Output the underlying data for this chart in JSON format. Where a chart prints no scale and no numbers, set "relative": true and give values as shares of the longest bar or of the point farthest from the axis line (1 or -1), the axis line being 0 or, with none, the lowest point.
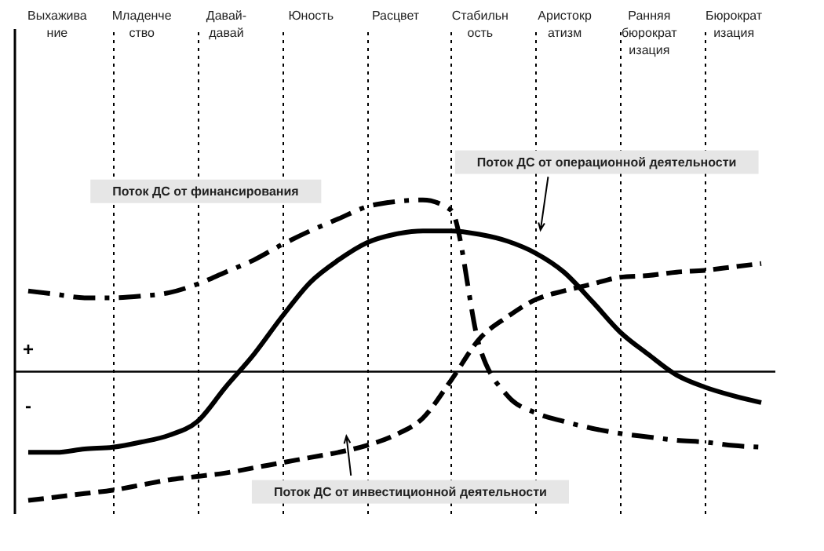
{
  "chart_data": {
    "type": "line",
    "relative": true,
    "categories": [
      null,
      "Выхаживание",
      null,
      null,
      "Младенчество",
      null,
      null,
      "Давай-давай",
      null,
      null,
      "Юность",
      null,
      null,
      "Расцвет",
      null,
      null,
      "Стабильность",
      null,
      null,
      "Аристократизм",
      null,
      null,
      "Ранняя бюрократизация",
      null,
      null,
      "Бюрократизация",
      null
    ],
    "grid": "x",
    "legend": false,
    "series": [
      {
        "name": "Поток ДС от операционной деятельности",
        "color": "#000000",
        "line_style": "solid",
        "values": [
          -0.47,
          -0.47,
          -0.45,
          -0.44,
          -0.41,
          -0.37,
          -0.29,
          -0.09,
          0.1,
          0.32,
          0.52,
          0.65,
          0.75,
          0.8,
          0.82,
          0.82,
          0.8,
          0.76,
          0.69,
          0.58,
          0.41,
          0.23,
          0.1,
          -0.02,
          -0.09,
          -0.14,
          -0.18
        ]
      },
      {
        "name": "Поток ДС от финансирования",
        "color": "#000000",
        "line_style": "dashdot",
        "values": [
          0.47,
          0.45,
          0.43,
          0.43,
          0.44,
          0.46,
          0.51,
          0.58,
          0.65,
          0.74,
          0.82,
          0.89,
          0.96,
          0.99,
          1,
          0.94,
          0.15,
          -0.14,
          -0.24,
          -0.29,
          -0.33,
          -0.36,
          -0.38,
          -0.4,
          -0.41,
          -0.43,
          -0.44
        ]
      },
      {
        "name": "Поток ДС от инвестиционной деятельности",
        "color": "#000000",
        "line_style": "dashed",
        "values": [
          -0.75,
          -0.73,
          -0.71,
          -0.69,
          -0.66,
          -0.63,
          -0.61,
          -0.59,
          -0.56,
          -0.53,
          -0.5,
          -0.47,
          -0.43,
          -0.37,
          -0.27,
          -0.05,
          0.19,
          0.32,
          0.42,
          0.47,
          0.51,
          0.55,
          0.56,
          0.58,
          0.59,
          0.61,
          0.63
        ]
      }
    ],
    "annotations": [
      "+",
      "-"
    ]
  }
}
